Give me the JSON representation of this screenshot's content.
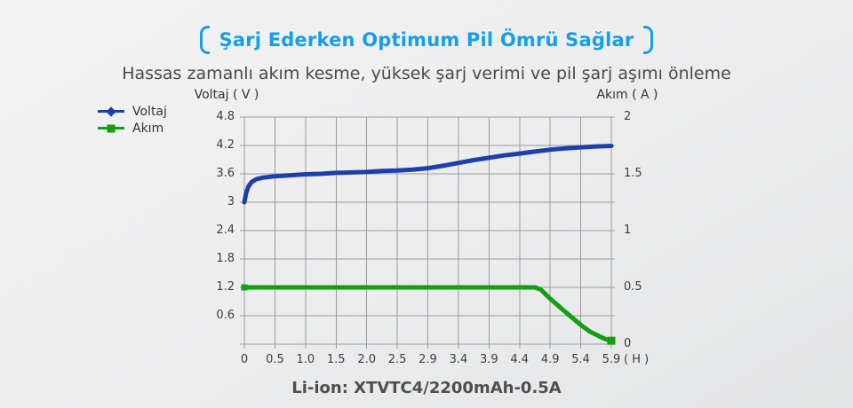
{
  "header": {
    "title": "Şarj Ederken Optimum Pil Ömrü Sağlar",
    "subtitle": "Hassas zamanlı akım kesme, yüksek şarj verimi ve pil şarj aşımı önleme"
  },
  "footer": {
    "caption": "Li-ion: XTVTC4/2200mAh-0.5A"
  },
  "colors": {
    "accent_blue": "#14a0e6",
    "voltage_line": "#1d3fab",
    "current_line": "#11a011",
    "grid": "#9b9b9b"
  },
  "legend": {
    "items": [
      {
        "label": "Voltaj",
        "color": "#1d3fab",
        "marker": "diamond"
      },
      {
        "label": "Akım",
        "color": "#11a011",
        "marker": "square"
      }
    ]
  },
  "chart_data": {
    "type": "line",
    "title": "Şarj Ederken Optimum Pil Ömrü Sağlar",
    "grid": true,
    "x_axis": {
      "unit_label": "( H )",
      "tick_labels": [
        "0",
        "0.5",
        "1.0",
        "1.5",
        "2.0",
        "2.5",
        "2.9",
        "3.4",
        "3.9",
        "4.4",
        "4.9",
        "5.4",
        "5.9"
      ],
      "tick_values": [
        0,
        0.5,
        1.0,
        1.5,
        2.0,
        2.5,
        2.9,
        3.4,
        3.9,
        4.4,
        4.9,
        5.4,
        5.9
      ]
    },
    "left_axis": {
      "label": "Voltaj ( V )",
      "tick_labels": [
        "4.8",
        "4.2",
        "3.6",
        "3",
        "2.4",
        "1.8",
        "1.2",
        "0.6"
      ],
      "range": [
        0,
        4.8
      ]
    },
    "right_axis": {
      "label": "Akım ( A )",
      "tick_labels": [
        "2",
        "1.5",
        "1",
        "0.5",
        "0"
      ],
      "tick_rows": [
        0,
        2,
        4,
        6,
        8
      ],
      "range": [
        0,
        2
      ]
    },
    "series": [
      {
        "name": "Voltaj",
        "axis": "left",
        "color": "#1d3fab",
        "marker": "diamond",
        "point_markers": "none",
        "points": [
          [
            0,
            3.0
          ],
          [
            0.03,
            3.2
          ],
          [
            0.07,
            3.34
          ],
          [
            0.12,
            3.43
          ],
          [
            0.2,
            3.49
          ],
          [
            0.3,
            3.52
          ],
          [
            0.5,
            3.55
          ],
          [
            0.75,
            3.57
          ],
          [
            1.0,
            3.59
          ],
          [
            1.25,
            3.6
          ],
          [
            1.5,
            3.62
          ],
          [
            1.75,
            3.63
          ],
          [
            2.0,
            3.64
          ],
          [
            2.25,
            3.66
          ],
          [
            2.5,
            3.67
          ],
          [
            2.7,
            3.69
          ],
          [
            2.9,
            3.72
          ],
          [
            3.15,
            3.77
          ],
          [
            3.4,
            3.83
          ],
          [
            3.65,
            3.89
          ],
          [
            3.9,
            3.94
          ],
          [
            4.15,
            3.99
          ],
          [
            4.4,
            4.03
          ],
          [
            4.65,
            4.07
          ],
          [
            4.9,
            4.11
          ],
          [
            5.15,
            4.14
          ],
          [
            5.4,
            4.16
          ],
          [
            5.65,
            4.18
          ],
          [
            5.9,
            4.19
          ]
        ]
      },
      {
        "name": "Akım",
        "axis": "right",
        "color": "#11a011",
        "marker": "square",
        "point_markers": "ends",
        "points": [
          [
            0,
            0.5
          ],
          [
            0.5,
            0.5
          ],
          [
            1.0,
            0.5
          ],
          [
            1.5,
            0.5
          ],
          [
            2.0,
            0.5
          ],
          [
            2.5,
            0.5
          ],
          [
            2.9,
            0.5
          ],
          [
            3.4,
            0.5
          ],
          [
            3.9,
            0.5
          ],
          [
            4.4,
            0.5
          ],
          [
            4.65,
            0.5
          ],
          [
            4.75,
            0.48
          ],
          [
            4.9,
            0.4
          ],
          [
            5.05,
            0.33
          ],
          [
            5.2,
            0.26
          ],
          [
            5.4,
            0.17
          ],
          [
            5.55,
            0.11
          ],
          [
            5.7,
            0.07
          ],
          [
            5.8,
            0.045
          ],
          [
            5.9,
            0.03
          ]
        ]
      }
    ]
  }
}
